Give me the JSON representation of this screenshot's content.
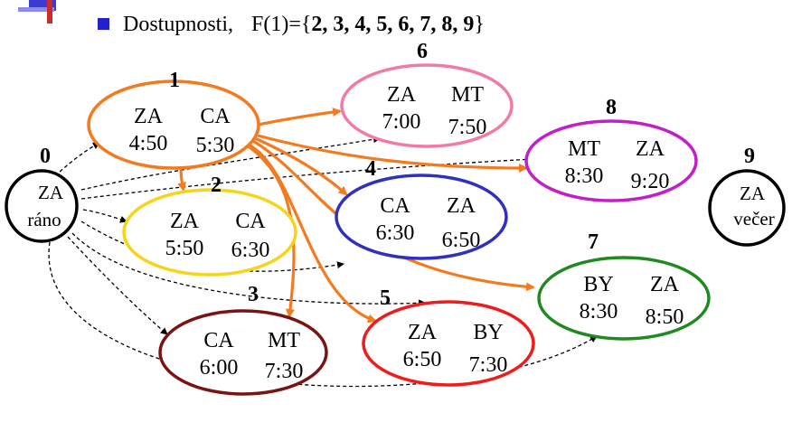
{
  "heading": {
    "label": "Dostupnosti,",
    "formula_prefix": "F(1)={",
    "formula_values": "2, 3, 4, 5, 6, 7, 8, 9",
    "formula_suffix": "}"
  },
  "colors": {
    "orange_edge": "#f47a1f",
    "dashed_edge": "#000000",
    "bullet": "#2222cc",
    "logo_blue": "#3b3bd1",
    "logo_red": "#cc2b2b"
  },
  "nodes": [
    {
      "id": "0",
      "label": "0",
      "line1": "ZA",
      "line2": "ráno",
      "color": "#000000"
    },
    {
      "id": "1",
      "label": "1",
      "c1": "ZA",
      "c2": "CA",
      "t1": "4:50",
      "t2": "5:30",
      "color": "#f47a1f"
    },
    {
      "id": "2",
      "label": "2",
      "c1": "ZA",
      "c2": "CA",
      "t1": "5:50",
      "t2": "6:30",
      "color": "#f5d419"
    },
    {
      "id": "3",
      "label": "3",
      "c1": "CA",
      "c2": "MT",
      "t1": "6:00",
      "t2": "7:30",
      "color": "#7a1414"
    },
    {
      "id": "4",
      "label": "4",
      "c1": "CA",
      "c2": "ZA",
      "t1": "6:30",
      "t2": "6:50",
      "color": "#3030c0"
    },
    {
      "id": "5",
      "label": "5",
      "c1": "ZA",
      "c2": "BY",
      "t1": "6:50",
      "t2": "7:30",
      "color": "#ee1c1c"
    },
    {
      "id": "6",
      "label": "6",
      "c1": "ZA",
      "c2": "MT",
      "t1": "7:00",
      "t2": "7:50",
      "color": "#f27aa8"
    },
    {
      "id": "7",
      "label": "7",
      "c1": "BY",
      "c2": "ZA",
      "t1": "8:30",
      "t2": "8:50",
      "color": "#1f8a1f"
    },
    {
      "id": "8",
      "label": "8",
      "c1": "MT",
      "c2": "ZA",
      "t1": "8:30",
      "t2": "9:20",
      "color": "#c21fc8"
    },
    {
      "id": "9",
      "label": "9",
      "line1": "ZA",
      "line2": "večer",
      "color": "#000000"
    }
  ]
}
